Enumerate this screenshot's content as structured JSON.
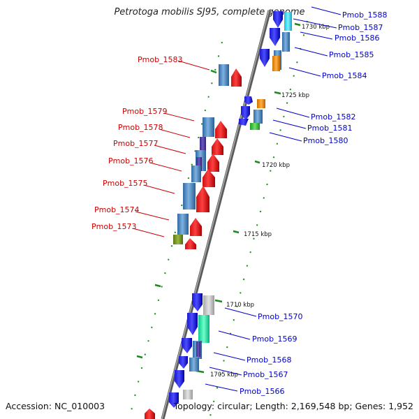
{
  "viewer": {
    "title": "Petrotoga mobilis SJ95, complete genome",
    "accession": "Accession: NC_010003",
    "topology": "Topology: circular; Length: 2,169,548 bp; Genes: 1,952"
  },
  "scale_labels": {
    "k1730": "1730 kbp",
    "k1725": "1725 kbp",
    "k1720": "1720 kbp",
    "k1715": "1715 kbp",
    "k1710": "1710 kbp",
    "k1705": "1705 kbp"
  },
  "genes_reverse": {
    "g1583": "Pmob_1583",
    "g1579": "Pmob_1579",
    "g1578": "Pmob_1578",
    "g1577": "Pmob_1577",
    "g1576": "Pmob_1576",
    "g1575": "Pmob_1575",
    "g1574": "Pmob_1574",
    "g1573": "Pmob_1573"
  },
  "genes_forward": {
    "g1588": "Pmob_1588",
    "g1587": "Pmob_1587",
    "g1586": "Pmob_1586",
    "g1585": "Pmob_1585",
    "g1584": "Pmob_1584",
    "g1582": "Pmob_1582",
    "g1581": "Pmob_1581",
    "g1580": "Pmob_1580",
    "g1570": "Pmob_1570",
    "g1569": "Pmob_1569",
    "g1568": "Pmob_1568",
    "g1567": "Pmob_1567",
    "g1566": "Pmob_1566"
  },
  "colors": {
    "backbone": "#777777",
    "forward_cds": "#0000ee",
    "reverse_cds": "#ee0000",
    "cog_blue": "#4a86c0",
    "tick": "#1a8a1a"
  }
}
